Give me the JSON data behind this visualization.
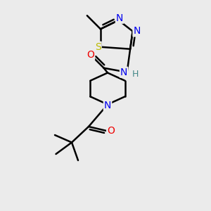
{
  "bg_color": "#ebebeb",
  "bond_color": "#000000",
  "bond_width": 1.8,
  "atom_colors": {
    "N": "#0000ee",
    "O": "#ee0000",
    "S": "#bbbb00",
    "H": "#448888",
    "C": "#000000"
  },
  "font_size": 10
}
